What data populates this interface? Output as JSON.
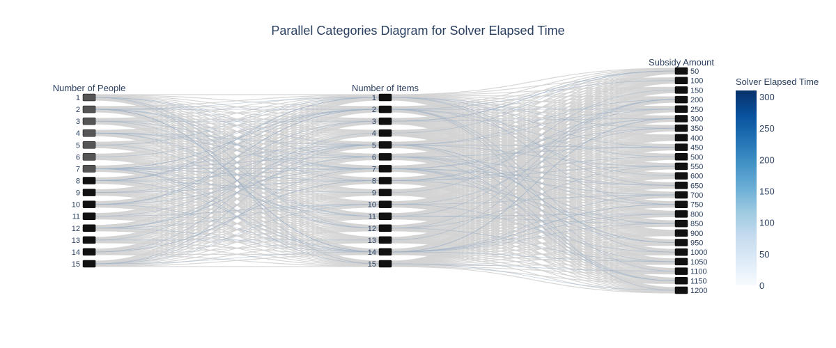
{
  "chart_data": {
    "type": "parallel_categories",
    "title": "Parallel Categories Diagram for Solver Elapsed Time",
    "dimensions": [
      {
        "name": "Number of People",
        "categories": [
          "1",
          "2",
          "3",
          "4",
          "5",
          "6",
          "7",
          "8",
          "9",
          "10",
          "11",
          "12",
          "13",
          "14",
          "15"
        ]
      },
      {
        "name": "Number of Items",
        "categories": [
          "1",
          "2",
          "3",
          "4",
          "5",
          "6",
          "7",
          "8",
          "9",
          "10",
          "11",
          "12",
          "13",
          "14",
          "15"
        ]
      },
      {
        "name": "Subsidy Amount",
        "categories": [
          "50",
          "100",
          "150",
          "200",
          "250",
          "300",
          "350",
          "400",
          "450",
          "500",
          "550",
          "600",
          "650",
          "700",
          "750",
          "800",
          "850",
          "900",
          "950",
          "1000",
          "1050",
          "1100",
          "1150",
          "1200"
        ]
      }
    ],
    "colorbar": {
      "title": "Solver Elapsed Time",
      "min": 0,
      "max": 310,
      "ticks": [
        0,
        50,
        100,
        150,
        200,
        250,
        300
      ],
      "colorscale": [
        "#f7fbff",
        "#deebf7",
        "#c6dbef",
        "#9ecae1",
        "#6baed6",
        "#4292c6",
        "#2171b5",
        "#08519c",
        "#08306b"
      ]
    },
    "link_color_default": "#d3d3d3",
    "link_color_highlight": "#9fb3c8"
  }
}
